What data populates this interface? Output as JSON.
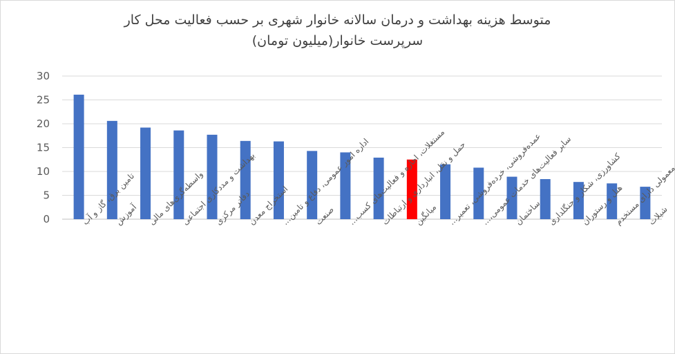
{
  "chart_data": {
    "type": "bar",
    "title_line1": "متوسط هزینه بهداشت و درمان سالانه خانوار شهری بر حسب فعالیت محل کار",
    "title_line2": "سرپرست خانوار(میلیون تومان)",
    "categories": [
      "تامین برق، گاز و آب",
      "آموزش",
      "واسطه‌گری‌های مالی",
      "بهداشت و مددکاری اجتماعی",
      "دفاتر مرکزی",
      "استخراج معدن",
      "اداره امور عمومی، دفاع و تامین...",
      "صنعت",
      "مستغلات، اجاره و فعالیت‌های کسب...",
      "حمل و نقل، انبارداری و ارتباطات",
      "میانگین",
      "عمده‌فروشی، خرده‌فروشی، تعمیر...",
      "سایر فعالیت‌های خدمات عمومی،...",
      "ساختمان",
      "کشاورزی، شکار و جنگلداری",
      "هتل و رستوران",
      "خانوارهای معمولی دارای مستخدم",
      "شیلات"
    ],
    "values": [
      26.1,
      20.6,
      19.2,
      18.6,
      17.7,
      16.4,
      16.3,
      14.3,
      14.0,
      12.9,
      12.5,
      11.5,
      10.8,
      8.9,
      8.4,
      7.8,
      7.5,
      6.8
    ],
    "highlight_category": "میانگین",
    "colors": {
      "bar": "#4472c4",
      "highlight": "#ff0000",
      "grid": "#d9d9d9"
    },
    "ylim": [
      0,
      30
    ],
    "yticks": [
      "0",
      "5",
      "10",
      "15",
      "20",
      "25",
      "30"
    ],
    "grid": true,
    "legend": "none"
  }
}
